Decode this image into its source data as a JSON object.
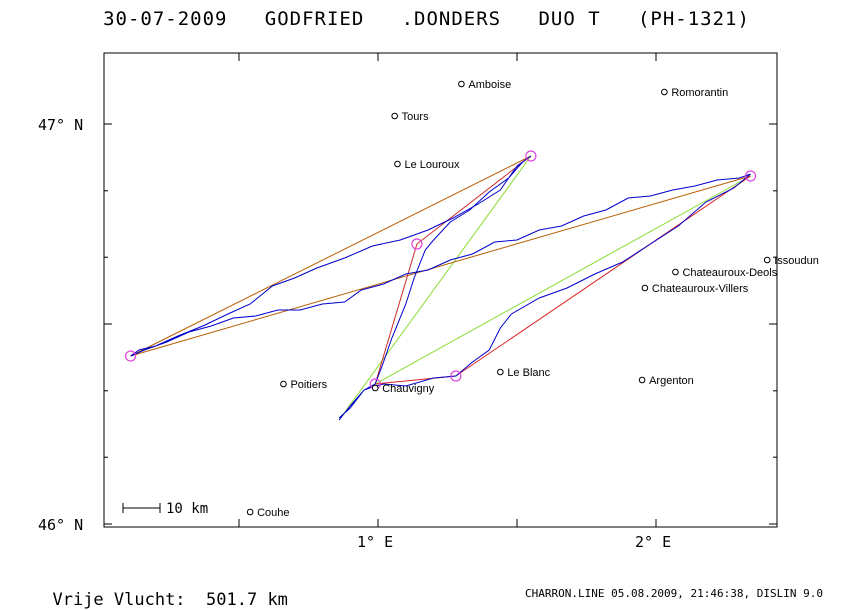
{
  "header": {
    "title": "30-07-2009   GODFRIED   .DONDERS   DUO T   (PH-1321)"
  },
  "summary": {
    "label": "Vrije Vlucht:",
    "value": "501.7 km"
  },
  "footer": {
    "text": "CHARRON.LINE 05.08.2009, 21:46:38, DISLIN 9.0"
  },
  "map": {
    "axes": {
      "lat_labels": [
        "47° N",
        "46° N"
      ],
      "lon_labels": [
        "1° E",
        "2° E"
      ]
    },
    "scale": {
      "label": "10 km"
    },
    "colors": {
      "track": "#0000cc",
      "leg_a": "#b85c00",
      "leg_b": "#cc2a2a",
      "leg_c": "#dd2222",
      "triangle": "#88dd33",
      "turnpoint": "#dd44dd"
    },
    "towns": [
      {
        "name": "Amboise",
        "lon": 1.3,
        "lat": 47.1
      },
      {
        "name": "Romorantin",
        "lon": 2.03,
        "lat": 47.08
      },
      {
        "name": "Tours",
        "lon": 1.06,
        "lat": 47.02
      },
      {
        "name": "Le Louroux",
        "lon": 1.07,
        "lat": 46.9
      },
      {
        "name": "Issoudun",
        "lon": 2.4,
        "lat": 46.66
      },
      {
        "name": "Chateauroux-Deols",
        "lon": 2.07,
        "lat": 46.63
      },
      {
        "name": "Chateauroux-Villers",
        "lon": 1.96,
        "lat": 46.59
      },
      {
        "name": "Poitiers",
        "lon": 0.66,
        "lat": 46.35
      },
      {
        "name": "Le Blanc",
        "lon": 1.44,
        "lat": 46.38
      },
      {
        "name": "Argenton",
        "lon": 1.95,
        "lat": 46.36
      },
      {
        "name": "Chauvigny",
        "lon": 0.99,
        "lat": 46.34
      },
      {
        "name": "Couhe",
        "lon": 0.54,
        "lat": 46.03
      }
    ],
    "turnpoints": [
      {
        "lon": 0.11,
        "lat": 46.42
      },
      {
        "lon": 1.55,
        "lat": 46.92
      },
      {
        "lon": 1.14,
        "lat": 46.7
      },
      {
        "lon": 0.99,
        "lat": 46.35
      },
      {
        "lon": 1.28,
        "lat": 46.37
      },
      {
        "lon": 2.34,
        "lat": 46.87
      }
    ],
    "legs": [
      {
        "color": "leg_a",
        "from": [
          0.11,
          46.42
        ],
        "to": [
          1.55,
          46.92
        ]
      },
      {
        "color": "leg_a",
        "from": [
          0.11,
          46.42
        ],
        "to": [
          2.34,
          46.87
        ]
      },
      {
        "color": "leg_b",
        "from": [
          1.14,
          46.7
        ],
        "to": [
          0.99,
          46.35
        ]
      },
      {
        "color": "leg_c",
        "from": [
          0.99,
          46.35
        ],
        "to": [
          1.28,
          46.37
        ]
      },
      {
        "color": "leg_c",
        "from": [
          1.28,
          46.37
        ],
        "to": [
          2.34,
          46.87
        ]
      },
      {
        "color": "leg_b",
        "from": [
          1.14,
          46.7
        ],
        "to": [
          1.55,
          46.92
        ]
      }
    ],
    "triangle_legs": [
      {
        "from": [
          0.86,
          46.26
        ],
        "to": [
          1.55,
          46.92
        ]
      },
      {
        "from": [
          0.99,
          46.35
        ],
        "to": [
          2.34,
          46.87
        ]
      }
    ],
    "track": [
      [
        0.86,
        46.26
      ],
      [
        0.9,
        46.3
      ],
      [
        0.95,
        46.33
      ],
      [
        0.99,
        46.35
      ],
      [
        1.02,
        46.4
      ],
      [
        1.05,
        46.47
      ],
      [
        1.1,
        46.55
      ],
      [
        1.13,
        46.62
      ],
      [
        1.17,
        46.68
      ],
      [
        1.2,
        46.71
      ],
      [
        1.26,
        46.75
      ],
      [
        1.33,
        46.79
      ],
      [
        1.4,
        46.83
      ],
      [
        1.47,
        46.87
      ],
      [
        1.52,
        46.9
      ],
      [
        1.55,
        46.92
      ],
      [
        1.5,
        46.89
      ],
      [
        1.44,
        46.84
      ],
      [
        1.36,
        46.8
      ],
      [
        1.27,
        46.77
      ],
      [
        1.18,
        46.73
      ],
      [
        1.08,
        46.71
      ],
      [
        0.98,
        46.69
      ],
      [
        0.88,
        46.67
      ],
      [
        0.78,
        46.64
      ],
      [
        0.7,
        46.62
      ],
      [
        0.62,
        46.59
      ],
      [
        0.54,
        46.55
      ],
      [
        0.46,
        46.52
      ],
      [
        0.37,
        46.5
      ],
      [
        0.28,
        46.47
      ],
      [
        0.2,
        46.45
      ],
      [
        0.14,
        46.43
      ],
      [
        0.11,
        46.42
      ],
      [
        0.16,
        46.43
      ],
      [
        0.24,
        46.46
      ],
      [
        0.32,
        46.48
      ],
      [
        0.4,
        46.5
      ],
      [
        0.48,
        46.51
      ],
      [
        0.56,
        46.52
      ],
      [
        0.64,
        46.53
      ],
      [
        0.72,
        46.54
      ],
      [
        0.8,
        46.55
      ],
      [
        0.88,
        46.56
      ],
      [
        0.94,
        46.58
      ],
      [
        1.02,
        46.6
      ],
      [
        1.1,
        46.62
      ],
      [
        1.18,
        46.64
      ],
      [
        1.26,
        46.66
      ],
      [
        1.34,
        46.68
      ],
      [
        1.42,
        46.7
      ],
      [
        1.5,
        46.71
      ],
      [
        1.58,
        46.73
      ],
      [
        1.66,
        46.75
      ],
      [
        1.74,
        46.77
      ],
      [
        1.82,
        46.79
      ],
      [
        1.9,
        46.81
      ],
      [
        1.98,
        46.82
      ],
      [
        2.06,
        46.83
      ],
      [
        2.14,
        46.85
      ],
      [
        2.22,
        46.86
      ],
      [
        2.3,
        46.87
      ],
      [
        2.34,
        46.87
      ],
      [
        2.28,
        46.84
      ],
      [
        2.18,
        46.8
      ],
      [
        2.08,
        46.75
      ],
      [
        1.98,
        46.7
      ],
      [
        1.88,
        46.66
      ],
      [
        1.78,
        46.62
      ],
      [
        1.68,
        46.59
      ],
      [
        1.58,
        46.56
      ],
      [
        1.48,
        46.53
      ],
      [
        1.44,
        46.49
      ],
      [
        1.4,
        46.44
      ],
      [
        1.34,
        46.4
      ],
      [
        1.28,
        46.37
      ],
      [
        1.2,
        46.36
      ],
      [
        1.1,
        46.35
      ],
      [
        1.02,
        46.35
      ],
      [
        0.99,
        46.35
      ],
      [
        0.95,
        46.33
      ],
      [
        0.9,
        46.29
      ],
      [
        0.86,
        46.26
      ]
    ]
  }
}
